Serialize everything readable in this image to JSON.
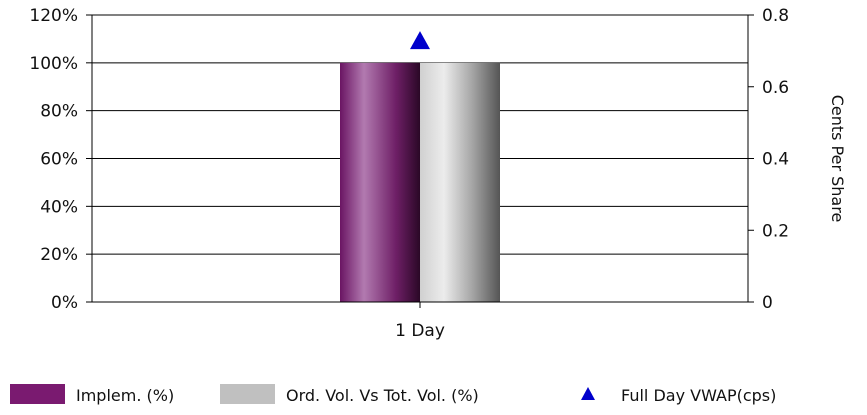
{
  "chart_data": {
    "type": "bar",
    "categories": [
      "1 Day"
    ],
    "series": [
      {
        "name": "Implem. (%)",
        "axis": "left",
        "values": [
          100
        ],
        "color": "#7a1a70"
      },
      {
        "name": "Ord. Vol. Vs Tot. Vol. (%)",
        "axis": "left",
        "values": [
          100
        ],
        "color": "#c0c0c0"
      },
      {
        "name": "Full Day VWAP(cps)",
        "axis": "right",
        "type": "scatter",
        "marker": "triangle",
        "values": [
          0.73
        ],
        "color": "#0000cc"
      }
    ],
    "left_axis": {
      "ylim": [
        0,
        120
      ],
      "ticks": [
        0,
        20,
        40,
        60,
        80,
        100,
        120
      ],
      "tick_labels": [
        "0%",
        "20%",
        "40%",
        "60%",
        "80%",
        "100%",
        "120%"
      ]
    },
    "right_axis": {
      "ylim": [
        0,
        0.8
      ],
      "ticks": [
        0,
        0.2,
        0.4,
        0.6,
        0.8
      ],
      "tick_labels": [
        "0",
        "0.2",
        "0.4",
        "0.6",
        "0.8"
      ],
      "label": "Cents Per Share"
    },
    "grid": true,
    "legend_position": "bottom"
  }
}
